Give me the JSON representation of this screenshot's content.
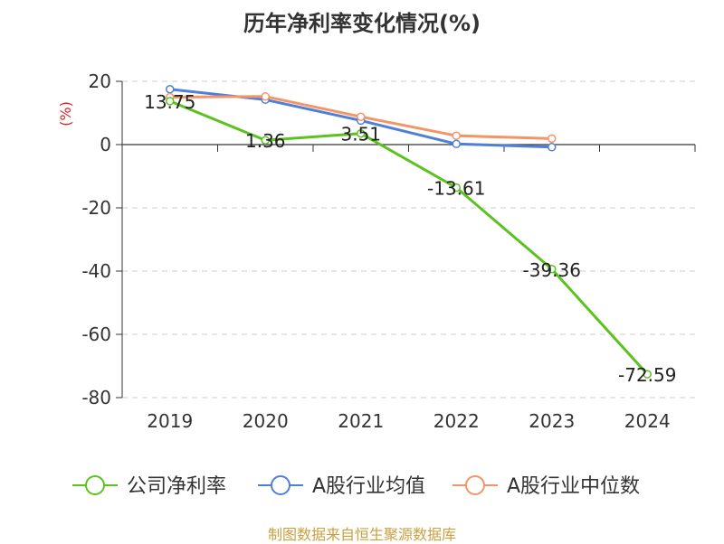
{
  "chart_data": {
    "type": "line",
    "title": "历年净利率变化情况(%)",
    "ylabel": "(%)",
    "xlabel": "",
    "categories": [
      "2019",
      "2020",
      "2021",
      "2022",
      "2023",
      "2024"
    ],
    "ylim": [
      -80,
      20
    ],
    "yticks": [
      "20",
      "0",
      "-20",
      "-40",
      "-60",
      "-80"
    ],
    "grid": true,
    "legend_position": "bottom",
    "series": [
      {
        "name": "公司净利率",
        "color": "#5cc21f",
        "values": [
          13.75,
          1.36,
          3.51,
          -13.61,
          -39.36,
          -72.59
        ],
        "labels": [
          "13.75",
          "1.36",
          "3.51",
          "-13.61",
          "-39.36",
          "-72.59"
        ]
      },
      {
        "name": "A股行业均值",
        "color": "#4f7fd8",
        "values": [
          17.5,
          14.2,
          7.6,
          0.2,
          -0.8,
          null
        ]
      },
      {
        "name": "A股行业中位数",
        "color": "#f39566",
        "values": [
          15.0,
          15.2,
          8.8,
          2.8,
          1.9,
          null
        ]
      }
    ]
  },
  "footer": "制图数据来自恒生聚源数据库"
}
